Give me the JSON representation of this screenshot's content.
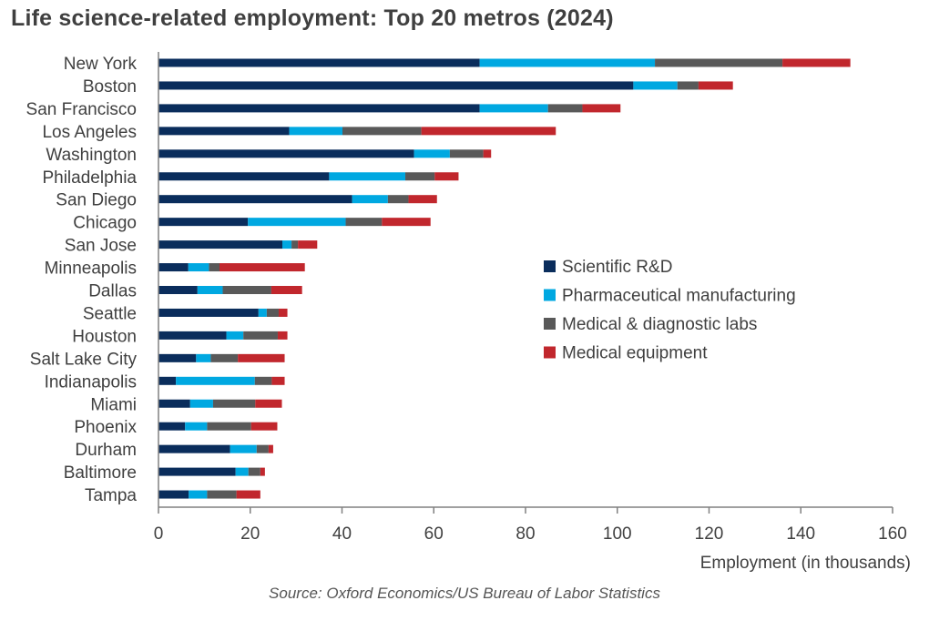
{
  "title": "Life science-related employment: Top 20 metros (2024)",
  "source": "Source: Oxford Economics/US Bureau of Labor Statistics",
  "chart_data": {
    "type": "bar",
    "orientation": "horizontal",
    "stacked": true,
    "title": "Life science-related employment: Top 20 metros (2024)",
    "xlabel": "Employment (in thousands)",
    "ylabel": "",
    "xlim": [
      0,
      160
    ],
    "xticks": [
      0,
      20,
      40,
      60,
      80,
      100,
      120,
      140,
      160
    ],
    "grid": false,
    "legend_position": "right-center",
    "categories": [
      "New York",
      "Boston",
      "San Francisco",
      "Los Angeles",
      "Washington",
      "Philadelphia",
      "San Diego",
      "Chicago",
      "San Jose",
      "Minneapolis",
      "Dallas",
      "Seattle",
      "Houston",
      "Salt Lake City",
      "Indianapolis",
      "Miami",
      "Phoenix",
      "Durham",
      "Baltimore",
      "Tampa"
    ],
    "series": [
      {
        "name": "Scientific R&D",
        "color": "#0a2d5c",
        "values": [
          70.0,
          103.5,
          70.0,
          28.5,
          55.7,
          37.2,
          42.2,
          19.5,
          27.0,
          6.5,
          8.5,
          21.8,
          14.8,
          8.2,
          3.8,
          6.9,
          5.8,
          15.6,
          16.8,
          6.6
        ]
      },
      {
        "name": "Pharmaceutical manufacturing",
        "color": "#00a8e1",
        "values": [
          38.2,
          9.6,
          14.9,
          11.6,
          7.8,
          16.6,
          7.8,
          21.3,
          2.0,
          4.5,
          5.5,
          1.8,
          3.7,
          3.2,
          17.2,
          5.0,
          4.8,
          5.8,
          2.8,
          4.0
        ]
      },
      {
        "name": "Medical & diagnostic labs",
        "color": "#595959",
        "values": [
          27.8,
          4.6,
          7.5,
          17.2,
          7.3,
          6.4,
          4.5,
          7.9,
          1.4,
          2.3,
          10.6,
          2.6,
          7.5,
          5.9,
          3.7,
          9.2,
          9.6,
          2.6,
          2.6,
          6.4
        ]
      },
      {
        "name": "Medical equipment",
        "color": "#c1272d",
        "values": [
          14.8,
          7.5,
          8.3,
          29.3,
          1.7,
          5.2,
          6.2,
          10.6,
          4.2,
          18.6,
          6.7,
          1.9,
          2.1,
          10.2,
          2.8,
          5.8,
          5.7,
          1.0,
          1.0,
          5.2
        ]
      }
    ]
  }
}
